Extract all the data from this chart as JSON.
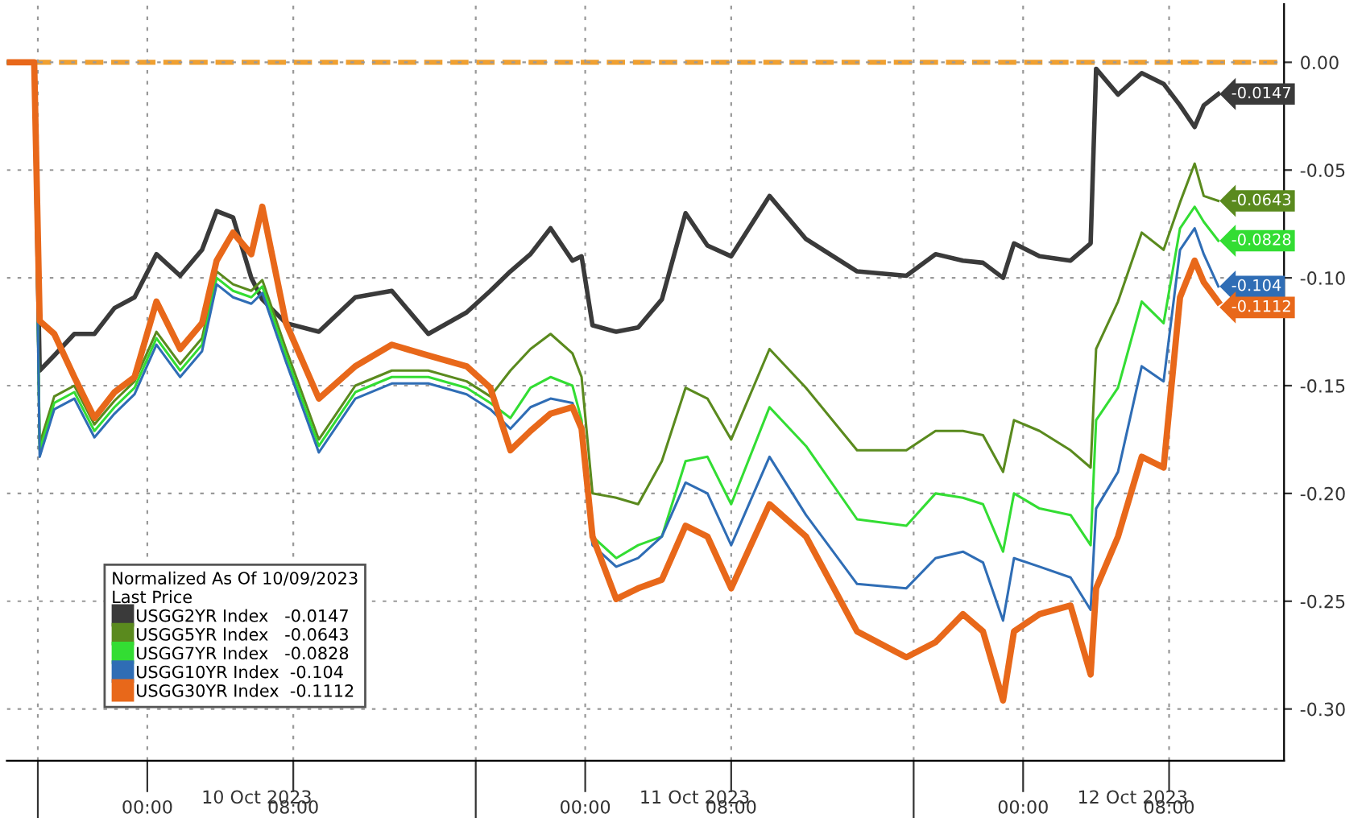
{
  "chart_data": {
    "type": "line",
    "legend_title": "Normalized As Of 10/09/2023\nLast Price",
    "x": [
      "2023-10-09T16:18",
      "2023-10-09T17:48",
      "2023-10-09T18:06",
      "2023-10-09T18:54",
      "2023-10-09T20:00",
      "2023-10-09T21:06",
      "2023-10-09T22:12",
      "2023-10-09T23:18",
      "2023-10-10T00:30",
      "2023-10-10T01:48",
      "2023-10-10T03:00",
      "2023-10-10T03:48",
      "2023-10-10T04:42",
      "2023-10-10T05:42",
      "2023-10-10T06:18",
      "2023-10-10T07:36",
      "2023-10-10T09:24",
      "2023-10-10T11:24",
      "2023-10-10T13:24",
      "2023-10-10T15:24",
      "2023-10-10T17:30",
      "2023-10-10T18:48",
      "2023-10-10T19:54",
      "2023-10-10T21:00",
      "2023-10-10T22:06",
      "2023-10-10T23:18",
      "2023-10-10T23:48",
      "2023-10-11T00:24",
      "2023-10-11T01:42",
      "2023-10-11T02:54",
      "2023-10-11T04:12",
      "2023-10-11T05:30",
      "2023-10-11T06:42",
      "2023-10-11T08:00",
      "2023-10-11T10:06",
      "2023-10-11T12:06",
      "2023-10-11T14:54",
      "2023-10-11T17:36",
      "2023-10-11T19:12",
      "2023-10-11T20:42",
      "2023-10-11T21:48",
      "2023-10-11T22:54",
      "2023-10-11T23:30",
      "2023-10-12T00:54",
      "2023-10-12T02:36",
      "2023-10-12T03:42",
      "2023-10-12T04:00",
      "2023-10-12T05:12",
      "2023-10-12T06:30",
      "2023-10-12T07:42",
      "2023-10-12T08:36",
      "2023-10-12T09:24",
      "2023-10-12T09:54",
      "2023-10-12T10:42"
    ],
    "series": [
      {
        "name": "USGG2YR Index   -0.0147",
        "color": "#3a3a3a",
        "values": [
          0,
          0,
          -0.143,
          -0.136,
          -0.126,
          -0.126,
          -0.114,
          -0.109,
          -0.089,
          -0.099,
          -0.087,
          -0.069,
          -0.072,
          -0.1,
          -0.11,
          -0.121,
          -0.125,
          -0.109,
          -0.106,
          -0.126,
          -0.116,
          -0.106,
          -0.097,
          -0.089,
          -0.077,
          -0.092,
          -0.09,
          -0.122,
          -0.125,
          -0.123,
          -0.11,
          -0.07,
          -0.085,
          -0.09,
          -0.062,
          -0.082,
          -0.097,
          -0.099,
          -0.089,
          -0.092,
          -0.093,
          -0.1,
          -0.084,
          -0.09,
          -0.092,
          -0.084,
          -0.003,
          -0.015,
          -0.005,
          -0.01,
          -0.02,
          -0.03,
          -0.02,
          -0.0147
        ],
        "value_labels": [
          null,
          null,
          null,
          null,
          null,
          null,
          null,
          null,
          null,
          null,
          null,
          null,
          null,
          null,
          null,
          null,
          null,
          null,
          null,
          null,
          null,
          null,
          null,
          null,
          null,
          null,
          null,
          null,
          null,
          null,
          null,
          null,
          null,
          null,
          null,
          null,
          null,
          null,
          null,
          null,
          null,
          null,
          null,
          null,
          null,
          null,
          null,
          null,
          null,
          null,
          null,
          null,
          null,
          "-0.0147"
        ]
      },
      {
        "name": "USGG5YR Index   -0.0643",
        "color": "#5a8a1e",
        "values": [
          0,
          0,
          -0.177,
          -0.155,
          -0.15,
          -0.168,
          -0.157,
          -0.148,
          -0.125,
          -0.14,
          -0.128,
          -0.097,
          -0.103,
          -0.106,
          -0.101,
          -0.133,
          -0.175,
          -0.15,
          -0.143,
          -0.143,
          -0.148,
          -0.155,
          -0.143,
          -0.133,
          -0.126,
          -0.135,
          -0.146,
          -0.2,
          -0.202,
          -0.205,
          -0.185,
          -0.151,
          -0.156,
          -0.175,
          -0.133,
          -0.151,
          -0.18,
          -0.18,
          -0.171,
          -0.171,
          -0.173,
          -0.19,
          -0.166,
          -0.171,
          -0.18,
          -0.188,
          -0.133,
          -0.111,
          -0.079,
          -0.087,
          -0.065,
          -0.047,
          -0.062,
          -0.0643
        ],
        "value_labels": [
          null,
          null,
          null,
          null,
          null,
          null,
          null,
          null,
          null,
          null,
          null,
          null,
          null,
          null,
          null,
          null,
          null,
          null,
          null,
          null,
          null,
          null,
          null,
          null,
          null,
          null,
          null,
          null,
          null,
          null,
          null,
          null,
          null,
          null,
          null,
          null,
          null,
          null,
          null,
          null,
          null,
          null,
          null,
          null,
          null,
          null,
          null,
          null,
          null,
          null,
          null,
          null,
          null,
          "-0.0643"
        ]
      },
      {
        "name": "USGG7YR Index   -0.0828",
        "color": "#33dd33",
        "values": [
          0,
          0,
          -0.18,
          -0.158,
          -0.153,
          -0.171,
          -0.16,
          -0.151,
          -0.128,
          -0.143,
          -0.131,
          -0.1,
          -0.106,
          -0.109,
          -0.104,
          -0.136,
          -0.178,
          -0.153,
          -0.146,
          -0.146,
          -0.151,
          -0.158,
          -0.165,
          -0.151,
          -0.146,
          -0.15,
          -0.166,
          -0.22,
          -0.23,
          -0.224,
          -0.22,
          -0.185,
          -0.183,
          -0.205,
          -0.16,
          -0.178,
          -0.212,
          -0.215,
          -0.2,
          -0.202,
          -0.205,
          -0.227,
          -0.2,
          -0.207,
          -0.21,
          -0.224,
          -0.166,
          -0.151,
          -0.111,
          -0.121,
          -0.077,
          -0.067,
          -0.074,
          -0.0828
        ],
        "value_labels": [
          null,
          null,
          null,
          null,
          null,
          null,
          null,
          null,
          null,
          null,
          null,
          null,
          null,
          null,
          null,
          null,
          null,
          null,
          null,
          null,
          null,
          null,
          null,
          null,
          null,
          null,
          null,
          null,
          null,
          null,
          null,
          null,
          null,
          null,
          null,
          null,
          null,
          null,
          null,
          null,
          null,
          null,
          null,
          null,
          null,
          null,
          null,
          null,
          null,
          null,
          null,
          null,
          null,
          "-0.0828"
        ]
      },
      {
        "name": "USGG10YR Index  -0.104",
        "color": "#2f6db5",
        "values": [
          0,
          0,
          -0.183,
          -0.161,
          -0.156,
          -0.174,
          -0.163,
          -0.154,
          -0.131,
          -0.146,
          -0.134,
          -0.103,
          -0.109,
          -0.112,
          -0.107,
          -0.139,
          -0.181,
          -0.156,
          -0.149,
          -0.149,
          -0.154,
          -0.161,
          -0.17,
          -0.16,
          -0.156,
          -0.158,
          -0.17,
          -0.224,
          -0.234,
          -0.23,
          -0.22,
          -0.195,
          -0.2,
          -0.224,
          -0.183,
          -0.21,
          -0.242,
          -0.244,
          -0.23,
          -0.227,
          -0.232,
          -0.259,
          -0.23,
          -0.234,
          -0.239,
          -0.254,
          -0.207,
          -0.19,
          -0.141,
          -0.148,
          -0.087,
          -0.077,
          -0.089,
          -0.104
        ],
        "value_labels": [
          null,
          null,
          null,
          null,
          null,
          null,
          null,
          null,
          null,
          null,
          null,
          null,
          null,
          null,
          null,
          null,
          null,
          null,
          null,
          null,
          null,
          null,
          null,
          null,
          null,
          null,
          null,
          null,
          null,
          null,
          null,
          null,
          null,
          null,
          null,
          null,
          null,
          null,
          null,
          null,
          null,
          null,
          null,
          null,
          null,
          null,
          null,
          null,
          null,
          null,
          null,
          null,
          null,
          "-0.104"
        ]
      },
      {
        "name": "USGG30YR Index  -0.1112",
        "color": "#e8681a",
        "values": [
          0,
          0,
          -0.12,
          -0.126,
          -0.146,
          -0.165,
          -0.153,
          -0.146,
          -0.111,
          -0.133,
          -0.121,
          -0.092,
          -0.079,
          -0.089,
          -0.067,
          -0.121,
          -0.156,
          -0.141,
          -0.131,
          -0.136,
          -0.141,
          -0.151,
          -0.18,
          -0.171,
          -0.163,
          -0.16,
          -0.17,
          -0.22,
          -0.249,
          -0.244,
          -0.24,
          -0.215,
          -0.22,
          -0.244,
          -0.205,
          -0.22,
          -0.264,
          -0.276,
          -0.269,
          -0.256,
          -0.264,
          -0.296,
          -0.264,
          -0.256,
          -0.252,
          -0.284,
          -0.244,
          -0.22,
          -0.183,
          -0.188,
          -0.109,
          -0.092,
          -0.102,
          -0.1112
        ],
        "value_labels": [
          null,
          null,
          null,
          null,
          null,
          null,
          null,
          null,
          null,
          null,
          null,
          null,
          null,
          null,
          null,
          null,
          null,
          null,
          null,
          null,
          null,
          null,
          null,
          null,
          null,
          null,
          null,
          null,
          null,
          null,
          null,
          null,
          null,
          null,
          null,
          null,
          null,
          null,
          null,
          null,
          null,
          null,
          null,
          null,
          null,
          null,
          null,
          null,
          null,
          null,
          null,
          null,
          null,
          "-0.1112"
        ]
      }
    ],
    "ref_lines": [
      {
        "axis": "y",
        "value": 0,
        "color": "#f0a030",
        "line_style": "dashed"
      }
    ],
    "xlim": [
      "2023-10-09T16:18",
      "2023-10-12T14:18"
    ],
    "xticks": [
      {
        "value": "2023-10-09T18:00",
        "label": null
      },
      {
        "value": "2023-10-10T18:00",
        "label": null
      },
      {
        "value": "2023-10-11T18:00",
        "label": null
      },
      {
        "value": "2023-10-10T00:00",
        "label": "00:00"
      },
      {
        "value": "2023-10-10T08:00",
        "label": "08:00"
      },
      {
        "value": "2023-10-11T00:00",
        "label": "00:00"
      },
      {
        "value": "2023-10-11T08:00",
        "label": "08:00"
      },
      {
        "value": "2023-10-12T00:00",
        "label": "00:00"
      },
      {
        "value": "2023-10-12T08:00",
        "label": "08:00"
      }
    ],
    "x2lim": [
      "2023-10-09T16:18",
      "2023-10-12T14:18"
    ],
    "x2ticks": [
      {
        "value": "2023-10-10T06:00",
        "label": "10 Oct 2023"
      },
      {
        "value": "2023-10-11T06:00",
        "label": "11 Oct 2023"
      },
      {
        "value": "2023-10-12T06:00",
        "label": "12 Oct 2023"
      }
    ],
    "ylim": [
      -0.324,
      0.027
    ],
    "yticks": [
      {
        "value": 0,
        "label": "0.00"
      },
      {
        "value": -0.05,
        "label": "-0.05"
      },
      {
        "value": -0.1,
        "label": "-0.10"
      },
      {
        "value": -0.15,
        "label": "-0.15"
      },
      {
        "value": -0.2,
        "label": "-0.20"
      },
      {
        "value": -0.25,
        "label": "-0.25"
      },
      {
        "value": -0.3,
        "label": "-0.30"
      }
    ],
    "grid": true,
    "legend": "bottom left",
    "line_style": "solid",
    "marker": "none"
  }
}
